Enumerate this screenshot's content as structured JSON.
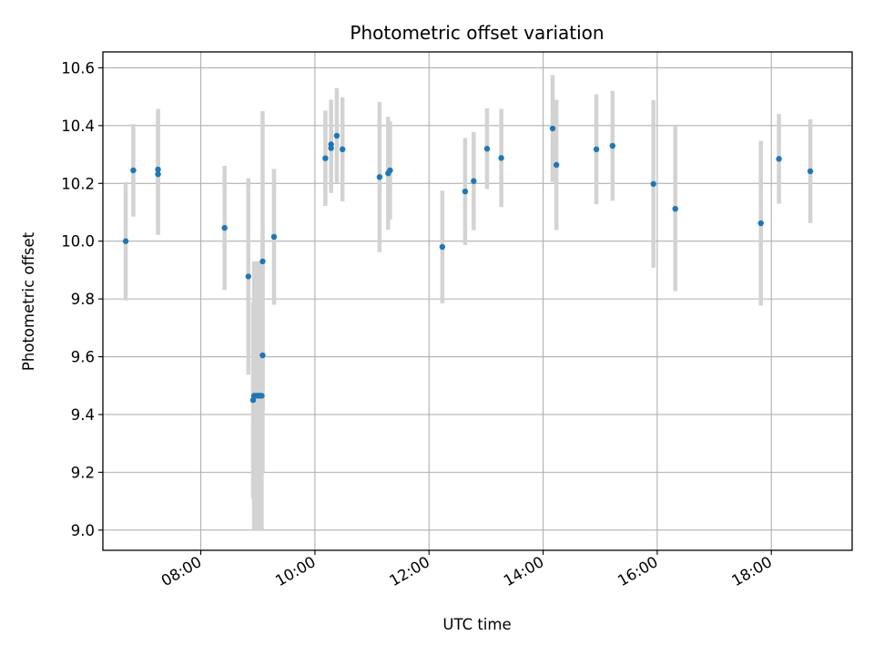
{
  "chart_data": {
    "type": "scatter",
    "title": "Photometric offset variation",
    "xlabel": "UTC time",
    "ylabel": "Photometric offset",
    "x_unit": "UTC time (HH:MM)",
    "xlim": [
      "06:17",
      "19:25"
    ],
    "ylim": [
      8.93,
      10.655
    ],
    "x_ticks": [
      "08:00",
      "10:00",
      "12:00",
      "14:00",
      "16:00",
      "18:00"
    ],
    "y_ticks": [
      "9.0",
      "9.2",
      "9.4",
      "9.6",
      "9.8",
      "10.0",
      "10.2",
      "10.4",
      "10.6"
    ],
    "grid": true,
    "marker_color": "#1f77b4",
    "errorbar_color": "#d3d3d3",
    "points": [
      {
        "x": "06:41",
        "y": 10.0,
        "yerr": 0.205
      },
      {
        "x": "06:49",
        "y": 10.245,
        "yerr": 0.16
      },
      {
        "x": "07:15",
        "y": 10.248,
        "yerr": 0.21
      },
      {
        "x": "07:15",
        "y": 10.232,
        "yerr": 0.21
      },
      {
        "x": "08:25",
        "y": 10.046,
        "yerr": 0.215
      },
      {
        "x": "08:50",
        "y": 9.878,
        "yerr": 0.34
      },
      {
        "x": "08:55",
        "y": 9.45,
        "yerr": 0.34
      },
      {
        "x": "08:56",
        "y": 9.465,
        "yerr": 0.465
      },
      {
        "x": "08:58",
        "y": 9.465,
        "yerr": 0.465
      },
      {
        "x": "09:00",
        "y": 9.465,
        "yerr": 0.465
      },
      {
        "x": "09:02",
        "y": 9.465,
        "yerr": 0.465
      },
      {
        "x": "09:04",
        "y": 9.465,
        "yerr": 0.465
      },
      {
        "x": "09:05",
        "y": 9.605,
        "yerr": 0.41
      },
      {
        "x": "09:05",
        "y": 9.93,
        "yerr": 0.52
      },
      {
        "x": "09:17",
        "y": 10.015,
        "yerr": 0.235
      },
      {
        "x": "10:11",
        "y": 10.287,
        "yerr": 0.165
      },
      {
        "x": "10:17",
        "y": 10.335,
        "yerr": 0.155
      },
      {
        "x": "10:17",
        "y": 10.322,
        "yerr": 0.155
      },
      {
        "x": "10:23",
        "y": 10.365,
        "yerr": 0.165
      },
      {
        "x": "10:29",
        "y": 10.318,
        "yerr": 0.18
      },
      {
        "x": "11:08",
        "y": 10.222,
        "yerr": 0.26
      },
      {
        "x": "11:17",
        "y": 10.235,
        "yerr": 0.195
      },
      {
        "x": "11:19",
        "y": 10.245,
        "yerr": 0.17
      },
      {
        "x": "12:14",
        "y": 9.98,
        "yerr": 0.195
      },
      {
        "x": "12:38",
        "y": 10.172,
        "yerr": 0.185
      },
      {
        "x": "12:47",
        "y": 10.208,
        "yerr": 0.17
      },
      {
        "x": "13:01",
        "y": 10.32,
        "yerr": 0.14
      },
      {
        "x": "13:16",
        "y": 10.288,
        "yerr": 0.17
      },
      {
        "x": "14:10",
        "y": 10.39,
        "yerr": 0.185
      },
      {
        "x": "14:14",
        "y": 10.264,
        "yerr": 0.225
      },
      {
        "x": "14:56",
        "y": 10.318,
        "yerr": 0.19
      },
      {
        "x": "15:13",
        "y": 10.33,
        "yerr": 0.19
      },
      {
        "x": "15:56",
        "y": 10.198,
        "yerr": 0.29
      },
      {
        "x": "16:19",
        "y": 10.112,
        "yerr": 0.285
      },
      {
        "x": "17:49",
        "y": 10.062,
        "yerr": 0.285
      },
      {
        "x": "18:08",
        "y": 10.285,
        "yerr": 0.155
      },
      {
        "x": "18:41",
        "y": 10.242,
        "yerr": 0.18
      }
    ]
  }
}
